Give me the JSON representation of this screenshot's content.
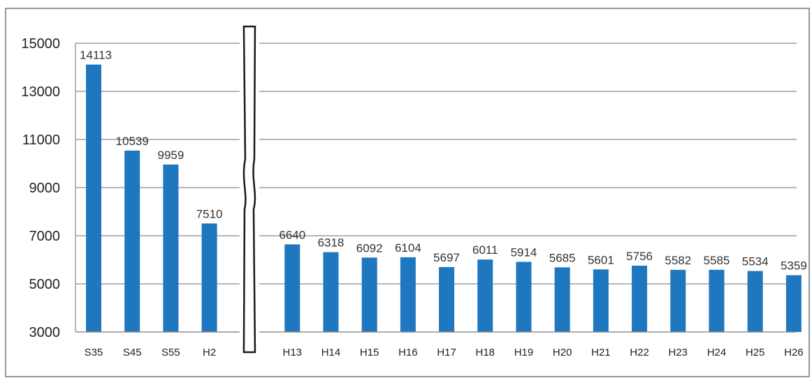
{
  "chart_data": {
    "type": "bar",
    "categories": [
      "S35",
      "S45",
      "S55",
      "H2",
      "H13",
      "H14",
      "H15",
      "H16",
      "H17",
      "H18",
      "H19",
      "H20",
      "H21",
      "H22",
      "H23",
      "H24",
      "H25",
      "H26"
    ],
    "values": [
      14113,
      10539,
      9959,
      7510,
      6640,
      6318,
      6092,
      6104,
      5697,
      6011,
      5914,
      5685,
      5601,
      5756,
      5582,
      5585,
      5534,
      5359
    ],
    "data_labels": [
      "14113",
      "10539",
      "9959",
      "7510",
      "6640",
      "6318",
      "6092",
      "6104",
      "5697",
      "6011",
      "5914",
      "5685",
      "5601",
      "5756",
      "5582",
      "5585",
      "5534",
      "5359"
    ],
    "ylim": [
      3000,
      15000
    ],
    "yticks": [
      "3000",
      "5000",
      "7000",
      "9000",
      "11000",
      "13000",
      "15000"
    ],
    "grid": true,
    "axis_break_after": "H2",
    "bar_color": "#1f77c0"
  }
}
